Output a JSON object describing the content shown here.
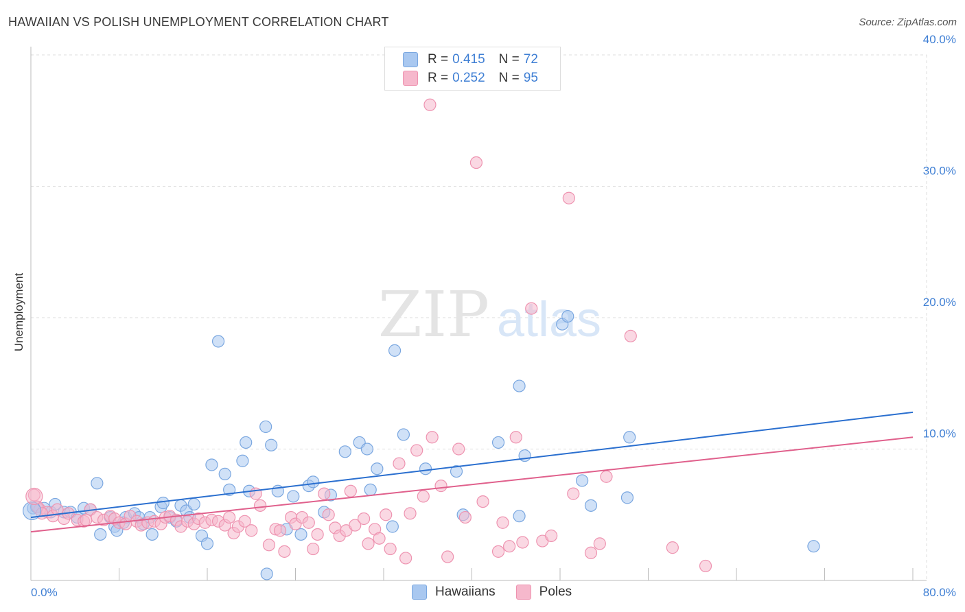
{
  "header": {
    "title": "HAWAIIAN VS POLISH UNEMPLOYMENT CORRELATION CHART",
    "source": "Source: ZipAtlas.com"
  },
  "watermark": {
    "zip": "ZIP",
    "atlas": "atlas"
  },
  "legend": {
    "rows": [
      {
        "r_label": "R =",
        "r_value": "0.415",
        "n_label": "N =",
        "n_value": "72"
      },
      {
        "r_label": "R =",
        "r_value": "0.252",
        "n_label": "N =",
        "n_value": "95"
      }
    ],
    "bottom": [
      "Hawaiians",
      "Poles"
    ]
  },
  "colors": {
    "hawaiians_fill": "#a9c8f0",
    "hawaiians_stroke": "#7aa7e0",
    "hawaiians_line": "#2a6fcf",
    "poles_fill": "#f6b8cc",
    "poles_stroke": "#ee93b0",
    "poles_line": "#e0608c",
    "tick_text": "#3f7fd4",
    "grid": "#dddddd"
  },
  "chart_data": {
    "type": "scatter",
    "title": "HAWAIIAN VS POLISH UNEMPLOYMENT CORRELATION CHART",
    "xlabel": "",
    "ylabel": "Unemployment",
    "xlim": [
      0,
      80
    ],
    "ylim": [
      0,
      40
    ],
    "x_tick_labels": [
      "0.0%",
      "80.0%"
    ],
    "y_ticks": [
      10,
      20,
      30,
      40
    ],
    "y_tick_labels": [
      "10.0%",
      "20.0%",
      "30.0%",
      "40.0%"
    ],
    "grid": true,
    "legend_position": "top-center",
    "series": [
      {
        "name": "Hawaiians",
        "r": 0.415,
        "n": 72,
        "trend": [
          [
            0,
            4.8
          ],
          [
            80,
            12.8
          ]
        ],
        "points": [
          [
            0.2,
            5.5
          ],
          [
            1.2,
            5.5
          ],
          [
            1.8,
            5.2
          ],
          [
            2.2,
            5.8
          ],
          [
            3.0,
            5.2
          ],
          [
            3.6,
            5.2
          ],
          [
            4.2,
            4.8
          ],
          [
            4.8,
            5.5
          ],
          [
            5.4,
            5.4
          ],
          [
            6.0,
            7.4
          ],
          [
            6.3,
            3.5
          ],
          [
            7.2,
            4.8
          ],
          [
            7.6,
            4.1
          ],
          [
            7.8,
            3.8
          ],
          [
            8.4,
            4.4
          ],
          [
            8.6,
            4.8
          ],
          [
            9.4,
            5.1
          ],
          [
            9.8,
            4.8
          ],
          [
            10.2,
            4.3
          ],
          [
            10.8,
            4.8
          ],
          [
            11.0,
            3.5
          ],
          [
            11.8,
            5.6
          ],
          [
            12.0,
            5.9
          ],
          [
            12.6,
            4.8
          ],
          [
            13.2,
            4.5
          ],
          [
            13.6,
            5.7
          ],
          [
            14.1,
            5.3
          ],
          [
            14.4,
            4.8
          ],
          [
            14.8,
            5.8
          ],
          [
            15.5,
            3.4
          ],
          [
            16.0,
            2.8
          ],
          [
            16.4,
            8.8
          ],
          [
            17.0,
            18.2
          ],
          [
            17.6,
            8.1
          ],
          [
            18.0,
            6.9
          ],
          [
            19.2,
            9.1
          ],
          [
            19.5,
            10.5
          ],
          [
            19.8,
            6.8
          ],
          [
            21.3,
            11.7
          ],
          [
            21.4,
            0.5
          ],
          [
            21.8,
            10.3
          ],
          [
            22.4,
            6.8
          ],
          [
            23.2,
            3.9
          ],
          [
            23.8,
            6.4
          ],
          [
            24.5,
            3.5
          ],
          [
            25.2,
            7.2
          ],
          [
            25.6,
            7.5
          ],
          [
            26.6,
            5.2
          ],
          [
            27.2,
            6.5
          ],
          [
            28.5,
            9.8
          ],
          [
            29.8,
            10.5
          ],
          [
            30.5,
            10.0
          ],
          [
            30.8,
            6.9
          ],
          [
            31.4,
            8.5
          ],
          [
            32.8,
            4.1
          ],
          [
            33.0,
            17.5
          ],
          [
            33.8,
            11.1
          ],
          [
            35.8,
            8.5
          ],
          [
            38.6,
            8.3
          ],
          [
            39.2,
            5.0
          ],
          [
            42.4,
            10.5
          ],
          [
            44.3,
            14.8
          ],
          [
            44.3,
            4.9
          ],
          [
            44.8,
            9.5
          ],
          [
            48.2,
            19.5
          ],
          [
            48.7,
            20.1
          ],
          [
            50.0,
            7.6
          ],
          [
            50.8,
            5.7
          ],
          [
            54.3,
            10.9
          ],
          [
            54.1,
            6.3
          ],
          [
            71.0,
            2.6
          ],
          [
            0.5,
            5.6
          ]
        ]
      },
      {
        "name": "Poles",
        "r": 0.252,
        "n": 95,
        "trend": [
          [
            0,
            3.7
          ],
          [
            80,
            10.9
          ]
        ],
        "points": [
          [
            0.3,
            6.5
          ],
          [
            0.8,
            5.4
          ],
          [
            1.5,
            5.2
          ],
          [
            2.0,
            4.9
          ],
          [
            2.4,
            5.4
          ],
          [
            3.0,
            4.7
          ],
          [
            3.4,
            5.1
          ],
          [
            4.2,
            4.6
          ],
          [
            4.8,
            4.5
          ],
          [
            5.4,
            5.4
          ],
          [
            6.0,
            4.8
          ],
          [
            6.6,
            4.6
          ],
          [
            7.2,
            4.9
          ],
          [
            7.6,
            4.7
          ],
          [
            8.0,
            4.4
          ],
          [
            8.6,
            4.3
          ],
          [
            9.0,
            4.9
          ],
          [
            9.6,
            4.5
          ],
          [
            10.0,
            4.2
          ],
          [
            10.6,
            4.4
          ],
          [
            11.2,
            4.5
          ],
          [
            11.8,
            4.3
          ],
          [
            12.2,
            4.8
          ],
          [
            12.6,
            4.9
          ],
          [
            13.2,
            4.6
          ],
          [
            13.6,
            4.1
          ],
          [
            14.2,
            4.5
          ],
          [
            14.8,
            4.3
          ],
          [
            15.2,
            4.7
          ],
          [
            15.8,
            4.4
          ],
          [
            16.4,
            4.6
          ],
          [
            17.0,
            4.5
          ],
          [
            17.6,
            4.2
          ],
          [
            18.0,
            4.8
          ],
          [
            18.4,
            3.6
          ],
          [
            18.8,
            4.1
          ],
          [
            19.4,
            4.5
          ],
          [
            20.0,
            3.8
          ],
          [
            20.4,
            6.6
          ],
          [
            20.8,
            5.7
          ],
          [
            21.6,
            2.7
          ],
          [
            22.2,
            3.9
          ],
          [
            22.6,
            3.8
          ],
          [
            23.0,
            2.2
          ],
          [
            23.6,
            4.8
          ],
          [
            24.0,
            4.3
          ],
          [
            24.6,
            4.8
          ],
          [
            25.2,
            4.4
          ],
          [
            25.6,
            2.4
          ],
          [
            26.0,
            3.5
          ],
          [
            26.6,
            6.6
          ],
          [
            27.0,
            5.0
          ],
          [
            27.6,
            4.0
          ],
          [
            28.0,
            3.4
          ],
          [
            28.6,
            3.8
          ],
          [
            29.0,
            6.8
          ],
          [
            29.4,
            4.2
          ],
          [
            30.2,
            4.7
          ],
          [
            30.6,
            2.8
          ],
          [
            31.2,
            3.9
          ],
          [
            31.6,
            3.2
          ],
          [
            32.2,
            5.0
          ],
          [
            32.6,
            2.4
          ],
          [
            33.4,
            8.9
          ],
          [
            34.0,
            1.7
          ],
          [
            34.4,
            5.1
          ],
          [
            35.0,
            9.9
          ],
          [
            35.6,
            6.4
          ],
          [
            36.2,
            36.2
          ],
          [
            36.4,
            10.9
          ],
          [
            37.2,
            7.2
          ],
          [
            37.8,
            1.8
          ],
          [
            38.8,
            10.0
          ],
          [
            39.4,
            4.8
          ],
          [
            40.4,
            31.8
          ],
          [
            41.0,
            6.0
          ],
          [
            42.4,
            2.2
          ],
          [
            42.8,
            4.4
          ],
          [
            43.4,
            2.6
          ],
          [
            44.0,
            10.9
          ],
          [
            44.6,
            2.9
          ],
          [
            45.4,
            20.7
          ],
          [
            46.4,
            3.0
          ],
          [
            47.2,
            3.4
          ],
          [
            48.8,
            29.1
          ],
          [
            49.2,
            6.6
          ],
          [
            50.8,
            2.1
          ],
          [
            51.6,
            2.8
          ],
          [
            52.2,
            7.9
          ],
          [
            54.4,
            18.6
          ],
          [
            58.2,
            2.5
          ],
          [
            61.2,
            1.1
          ],
          [
            0.6,
            5.6
          ],
          [
            1.0,
            5.1
          ],
          [
            5.0,
            4.6
          ]
        ]
      }
    ]
  }
}
